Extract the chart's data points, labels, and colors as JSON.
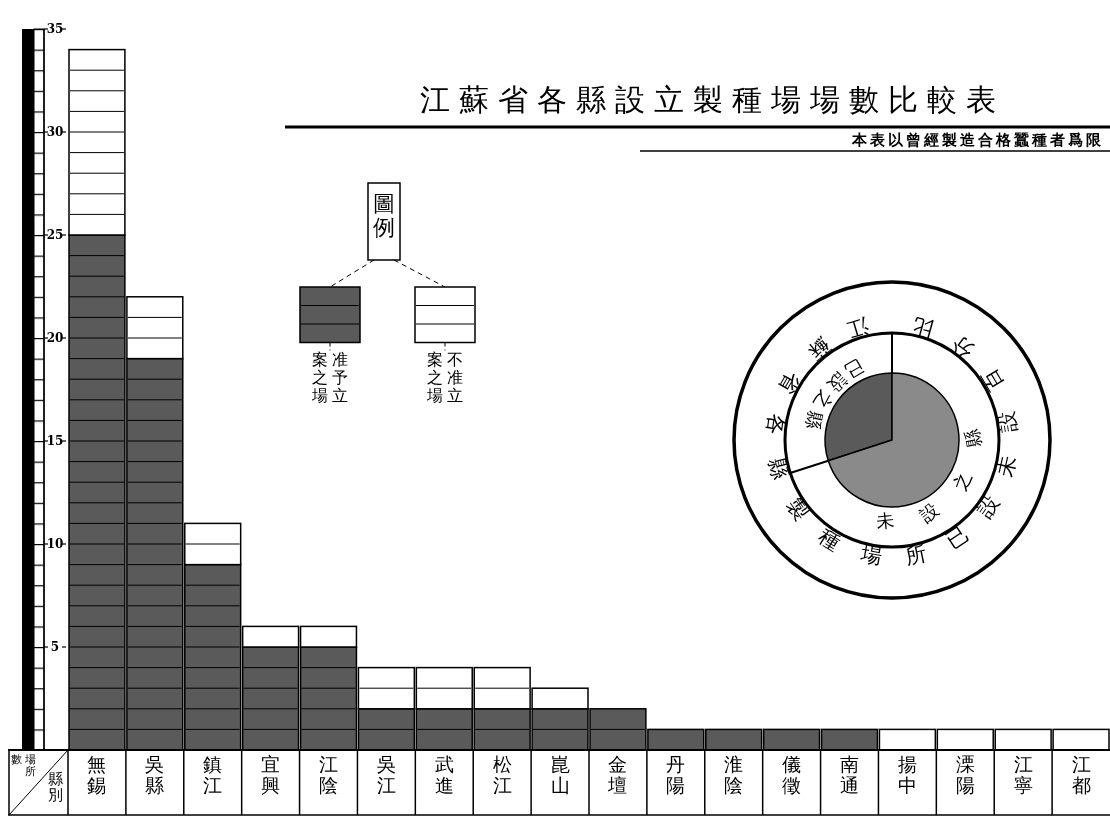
{
  "chart_data": [
    {
      "type": "bar",
      "title": "江蘇省各縣設立製種場場數比較表",
      "subtitle": "本表以曾經製造合格蠶種者爲限",
      "xlabel": "縣別",
      "ylabel": "場所數",
      "legend_title": "圖例",
      "legend": "left",
      "categories": [
        "無錫",
        "吳縣",
        "鎮江",
        "宜興",
        "江陰",
        "吳江",
        "武進",
        "松江",
        "崑山",
        "金壇",
        "丹陽",
        "淮陰",
        "儀徵",
        "南通",
        "揚中",
        "溧陽",
        "江寧",
        "江都"
      ],
      "stacked": true,
      "ylim": [
        0,
        35
      ],
      "yticks": [
        5,
        10,
        15,
        20,
        25,
        30,
        35
      ],
      "series": [
        {
          "name": "准予立案之場",
          "color": "#5a5a5a",
          "values": [
            25,
            19,
            9,
            5,
            5,
            2,
            2,
            2,
            2,
            2,
            1,
            1,
            1,
            1,
            0,
            0,
            0,
            0
          ]
        },
        {
          "name": "不准立案之場",
          "color": "#ffffff",
          "values": [
            9,
            3,
            2,
            1,
            1,
            2,
            2,
            2,
            1,
            0,
            0,
            0,
            0,
            0,
            1,
            1,
            1,
            1
          ]
        }
      ]
    },
    {
      "type": "pie",
      "title": "江蘇省各縣製種場所已設未設百分比",
      "categories": [
        "已設之縣",
        "未設之縣"
      ],
      "values": [
        30,
        70
      ],
      "colors": [
        "#5a5a5a",
        "#8a8a8a"
      ]
    }
  ]
}
